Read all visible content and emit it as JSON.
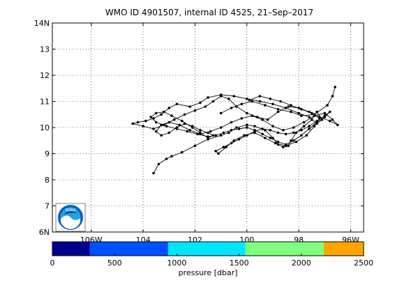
{
  "chart_data": {
    "type": "line",
    "title": "WMO ID 4901507, internal ID 4525, 21–Sep–2017",
    "xlabel": "",
    "ylabel": "",
    "xlim": [
      -107.5,
      -95.5
    ],
    "ylim": [
      6,
      14
    ],
    "grid": true,
    "x_ticks": [
      -106,
      -104,
      -102,
      -100,
      -98,
      -96
    ],
    "x_tick_labels": [
      "106W",
      "104",
      "102",
      "100",
      "98",
      "96W"
    ],
    "y_ticks": [
      6,
      7,
      8,
      9,
      10,
      11,
      12,
      13,
      14
    ],
    "y_tick_labels": [
      "6N",
      "7",
      "8",
      "9",
      "10",
      "11",
      "12",
      "13",
      "14N"
    ],
    "line_color": "#000000",
    "series": [
      {
        "lon": [
          -103.6,
          -103.4,
          -103.1,
          -102.9,
          -102.5,
          -102.0,
          -101.5,
          -101.0,
          -100.7,
          -100.4,
          -100.0,
          -99.7,
          -99.3,
          -99.0,
          -98.8,
          -98.6,
          -98.4,
          -98.3,
          -98.1,
          -97.8,
          -97.5,
          -97.3,
          -97.1,
          -97.3,
          -97.6,
          -98.0,
          -98.5,
          -99.0,
          -99.5,
          -100.0,
          -100.5,
          -101.0,
          -101.5,
          -101.8,
          -102.2,
          -102.7,
          -103.0,
          -103.3,
          -103.6,
          -103.9,
          -104.2,
          -104.4,
          -104.0,
          -103.6,
          -103.2,
          -102.8,
          -102.4,
          -102.0,
          -101.6,
          -101.3,
          -101.0,
          -100.7,
          -100.4,
          -100.0,
          -99.6,
          -99.2,
          -98.8,
          -98.4,
          -98.0,
          -97.6,
          -97.2,
          -96.8,
          -96.5,
          -96.7,
          -97.0,
          -97.4,
          -97.8,
          -98.2,
          -98.6,
          -99.0,
          -99.4,
          -99.8,
          -100.2,
          -100.6,
          -101.0,
          -101.4,
          -101.8,
          -102.2,
          -102.6,
          -103.0,
          -103.3,
          -103.5,
          -103.3,
          -103.0,
          -102.7,
          -102.4,
          -102.1,
          -101.8,
          -101.5,
          -101.3,
          -101.5,
          -101.8,
          -102.1,
          -102.5,
          -102.9,
          -103.2,
          -103.5,
          -103.7,
          -103.5,
          -103.1,
          -102.7,
          -102.3,
          -101.9,
          -101.5,
          -101.2,
          -100.9,
          -100.6,
          -100.3,
          -100.0,
          -99.7,
          -99.4,
          -99.1,
          -98.8,
          -98.5,
          -98.2,
          -97.9,
          -97.6,
          -97.3,
          -97.0,
          -96.8,
          -97.0,
          -97.3,
          -97.6,
          -97.9,
          -98.2,
          -98.5,
          -98.8,
          -99.1,
          -99.4,
          -99.7,
          -100.0,
          -100.3,
          -100.6,
          -100.9,
          -101.2,
          -101.1,
          -100.8,
          -100.5,
          -100.1,
          -99.7,
          -99.3,
          -98.9,
          -98.5,
          -98.1,
          -97.7,
          -97.4,
          -97.2,
          -97.5,
          -97.9,
          -98.3,
          -98.7,
          -99.1,
          -99.5,
          -99.9
        ],
        "lat": [
          8.25,
          8.6,
          8.8,
          8.9,
          9.05,
          9.3,
          9.55,
          9.7,
          9.8,
          10.0,
          10.1,
          10.05,
          9.9,
          9.6,
          9.35,
          9.25,
          9.3,
          9.5,
          9.8,
          10.05,
          10.3,
          10.6,
          10.3,
          10.15,
          10.4,
          10.55,
          10.75,
          10.9,
          11.0,
          11.1,
          11.2,
          11.25,
          11.15,
          10.95,
          10.8,
          10.9,
          10.75,
          10.5,
          10.35,
          10.25,
          10.2,
          10.15,
          10.05,
          9.95,
          10.1,
          10.3,
          10.5,
          10.65,
          10.8,
          11.0,
          11.2,
          11.1,
          10.8,
          10.55,
          10.4,
          10.3,
          10.6,
          10.8,
          10.75,
          10.6,
          10.4,
          10.25,
          10.1,
          10.3,
          10.55,
          10.45,
          10.2,
          10.0,
          9.9,
          10.05,
          10.3,
          10.45,
          10.35,
          10.2,
          10.0,
          9.85,
          9.75,
          9.9,
          10.1,
          10.2,
          10.1,
          9.85,
          9.7,
          9.8,
          10.0,
          10.15,
          10.05,
          9.9,
          9.8,
          9.7,
          9.6,
          9.8,
          10.0,
          10.25,
          10.45,
          10.6,
          10.55,
          10.4,
          10.2,
          10.05,
          9.95,
          9.85,
          9.75,
          9.65,
          9.7,
          9.8,
          9.9,
          9.95,
          10.0,
          9.9,
          9.75,
          9.6,
          9.45,
          9.35,
          9.5,
          9.7,
          9.95,
          10.2,
          10.4,
          10.6,
          10.45,
          10.25,
          10.05,
          9.9,
          9.8,
          9.75,
          9.8,
          9.9,
          9.95,
          9.85,
          9.7,
          9.55,
          9.4,
          9.25,
          9.1,
          9.0,
          9.25,
          9.5,
          9.7,
          9.8,
          9.6,
          9.4,
          9.3,
          9.45,
          9.7,
          10.05,
          10.35,
          10.55,
          10.7,
          10.85,
          11.0,
          11.1,
          11.2,
          11.05
        ]
      },
      {
        "lon": [
          -101.0,
          -100.6,
          -100.2,
          -99.8,
          -99.3,
          -98.8,
          -98.3,
          -97.9,
          -97.4,
          -96.9,
          -96.7,
          -96.6
        ],
        "lat": [
          10.55,
          10.75,
          10.9,
          11.0,
          10.85,
          10.7,
          10.6,
          10.45,
          10.5,
          10.85,
          11.2,
          11.55
        ]
      }
    ],
    "colorbar": {
      "label": "pressure [dbar]",
      "min": 0,
      "max": 2500,
      "tick_values": [
        0,
        500,
        1000,
        1500,
        2000,
        2500
      ],
      "tick_labels": [
        "0",
        "500",
        "1000",
        "1500",
        "2000",
        "2500"
      ],
      "bands": [
        {
          "from": 0,
          "to": 300,
          "color": "#00008f"
        },
        {
          "from": 300,
          "to": 930,
          "color": "#0050ff"
        },
        {
          "from": 930,
          "to": 1550,
          "color": "#00e6ff"
        },
        {
          "from": 1550,
          "to": 2180,
          "color": "#80ff80"
        },
        {
          "from": 2180,
          "to": 2500,
          "color": "#ffa500"
        }
      ]
    }
  },
  "logo": {
    "text": "NOAA",
    "colors": {
      "outer": "#0a5db5",
      "inner": "#1fa3e8",
      "wave": "#ffffff",
      "bird": "#0b2a75"
    }
  }
}
